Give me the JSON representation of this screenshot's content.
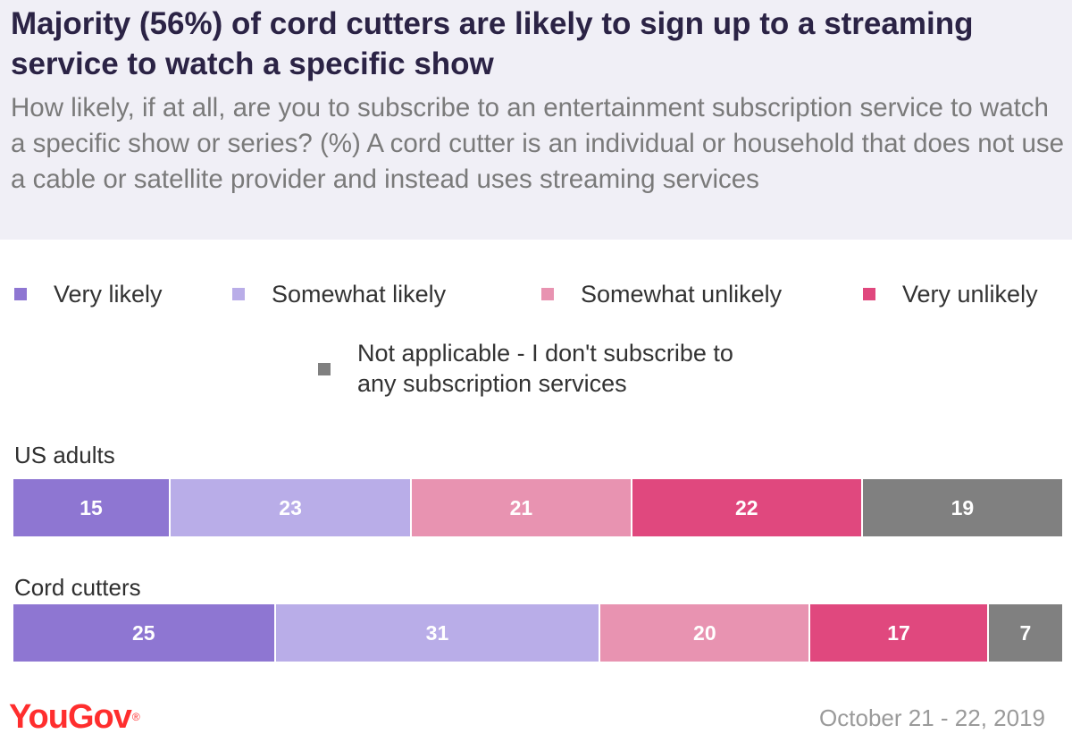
{
  "title": "Majority (56%) of cord cutters are likely to sign up to a streaming service to watch a specific show",
  "subtitle": "How likely, if at all, are you to subscribe to an entertainment subscription service to watch a specific show or series? (%) A cord cutter is an individual or household that does not use a cable or satellite provider and instead uses streaming services",
  "legend": [
    {
      "label": "Very likely",
      "color": "#8e76d2"
    },
    {
      "label": "Somewhat likely",
      "color": "#b9ade8"
    },
    {
      "label": "Somewhat unlikely",
      "color": "#e893b1"
    },
    {
      "label": "Very unlikely",
      "color": "#e0487e"
    },
    {
      "label": "Not applicable - I don't subscribe to any subscription services",
      "color": "#808080"
    }
  ],
  "chart_data": {
    "type": "bar",
    "orientation": "horizontal",
    "stacked": true,
    "title": "Majority (56%) of cord cutters are likely to sign up to a streaming service to watch a specific show",
    "categories": [
      "US adults",
      "Cord cutters"
    ],
    "series": [
      {
        "name": "Very likely",
        "values": [
          15,
          25
        ]
      },
      {
        "name": "Somewhat likely",
        "values": [
          23,
          31
        ]
      },
      {
        "name": "Somewhat unlikely",
        "values": [
          21,
          20
        ]
      },
      {
        "name": "Very unlikely",
        "values": [
          22,
          17
        ]
      },
      {
        "name": "Not applicable - I don't subscribe to any subscription services",
        "values": [
          19,
          7
        ]
      }
    ],
    "xlabel": "",
    "ylabel": "",
    "legend_position": "top"
  },
  "footer": {
    "brand": "YouGov",
    "brand_mark": "®",
    "date": "October 21 - 22, 2019"
  }
}
